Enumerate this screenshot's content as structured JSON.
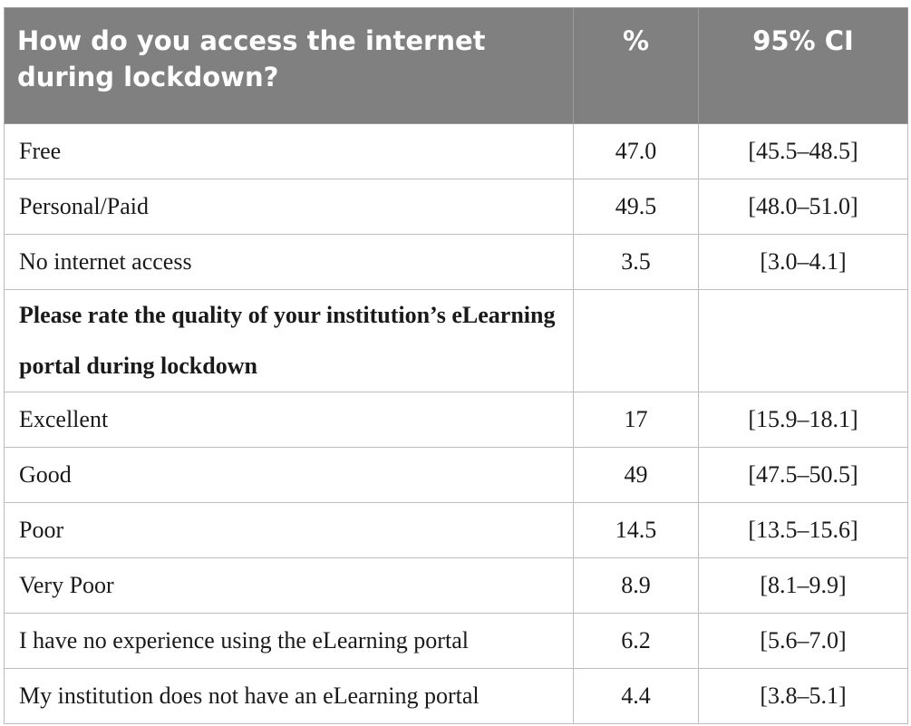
{
  "table": {
    "headers": {
      "question": "How do you access the internet during lockdown?",
      "percent": "%",
      "ci": "95% CI"
    },
    "rows": [
      {
        "label": "Free",
        "percent": "47.0",
        "ci": "[45.5–48.5]"
      },
      {
        "label": "Personal/Paid",
        "percent": "49.5",
        "ci": "[48.0–51.0]"
      },
      {
        "label": "No internet access",
        "percent": "3.5",
        "ci": "[3.0–4.1]"
      },
      {
        "label": "Please rate the quality of your institution’s eLearning portal during lockdown",
        "percent": "",
        "ci": ""
      },
      {
        "label": "Excellent",
        "percent": "17",
        "ci": "[15.9–18.1]"
      },
      {
        "label": "Good",
        "percent": "49",
        "ci": "[47.5–50.5]"
      },
      {
        "label": "Poor",
        "percent": "14.5",
        "ci": "[13.5–15.6]"
      },
      {
        "label": "Very Poor",
        "percent": "8.9",
        "ci": "[8.1–9.9]"
      },
      {
        "label": "I have no experience using the eLearning portal",
        "percent": "6.2",
        "ci": "[5.6–7.0]"
      },
      {
        "label": "My institution does not have an eLearning portal",
        "percent": "4.4",
        "ci": "[3.8–5.1]"
      }
    ]
  }
}
